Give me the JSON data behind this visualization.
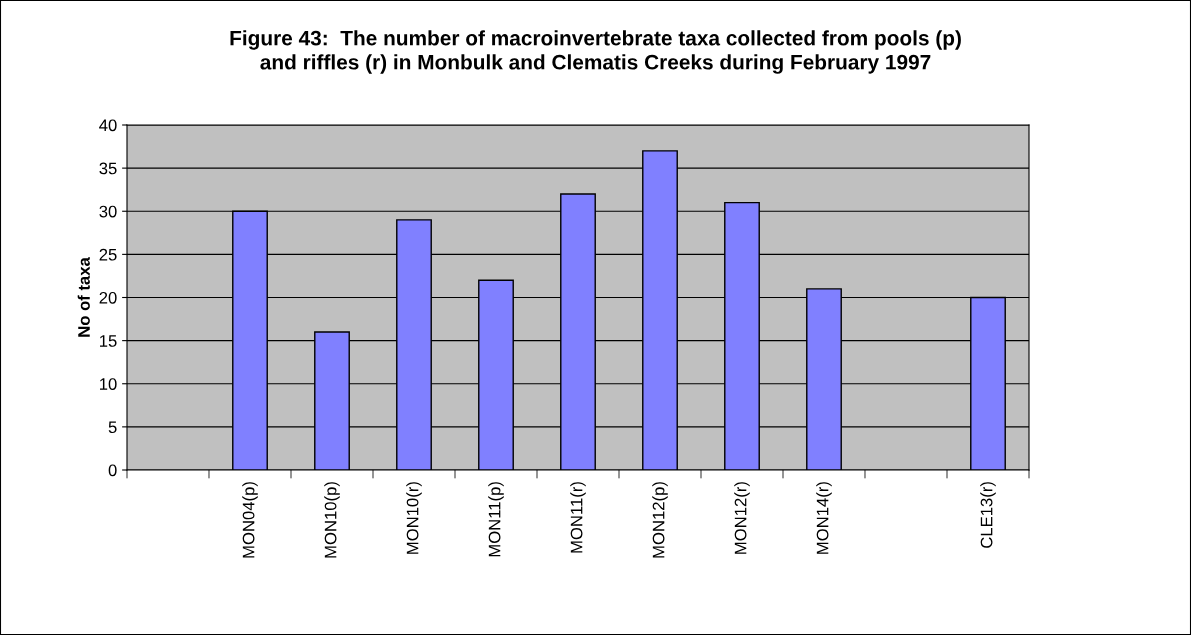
{
  "chart_data": {
    "type": "bar",
    "title": "Figure 43:  The number of macroinvertebrate taxa collected from pools (p)\nand riffles (r) in Monbulk and Clematis Creeks during February 1997",
    "ylabel": "No of taxa",
    "categories": [
      null,
      "MON04(p)",
      "MON10(p)",
      "MON10(r)",
      "MON11(p)",
      "MON11(r)",
      "MON12(p)",
      "MON12(r)",
      "MON14(r)",
      null,
      "CLE13(r)"
    ],
    "values": [
      null,
      30,
      16,
      29,
      22,
      32,
      37,
      31,
      21,
      null,
      20
    ],
    "color": "#8080ff",
    "ylim": [
      0,
      40
    ],
    "yticks": [
      0,
      5,
      10,
      15,
      20,
      25,
      30,
      35,
      40
    ],
    "grid": "y",
    "legend": false
  }
}
